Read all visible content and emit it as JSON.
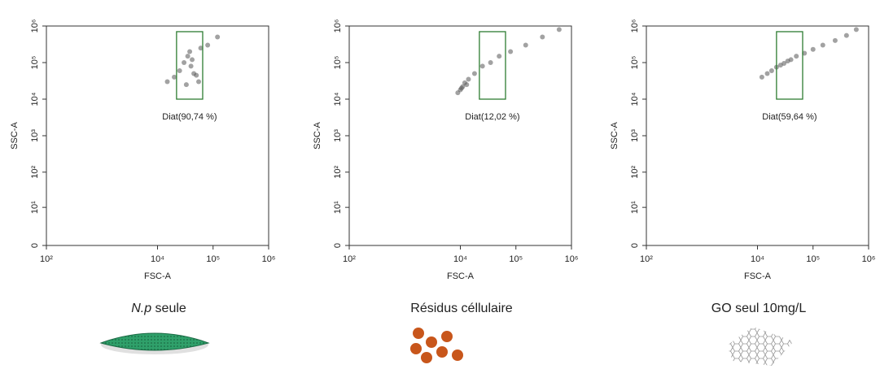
{
  "chart_data": [
    {
      "type": "scatter",
      "xlabel": "FSC-A",
      "ylabel": "SSC-A",
      "xscale": "log",
      "yscale": "symlog",
      "xlim": [
        100,
        1000000
      ],
      "ylim": [
        0,
        1000000
      ],
      "xticks": [
        {
          "value": 100,
          "label": "10²"
        },
        {
          "value": 10000,
          "label": "10⁴"
        },
        {
          "value": 100000,
          "label": "10⁵"
        },
        {
          "value": 1000000,
          "label": "10⁶"
        }
      ],
      "yticks": [
        0,
        {
          "value": 10,
          "label": "10¹"
        },
        {
          "value": 100,
          "label": "10²"
        },
        {
          "value": 1000,
          "label": "10³"
        },
        {
          "value": 10000,
          "label": "10⁴"
        },
        {
          "value": 100000,
          "label": "10⁵"
        },
        {
          "value": 1000000,
          "label": "10⁶"
        }
      ],
      "color": "#555555",
      "x": [
        25000,
        30000,
        35000,
        40000,
        45000,
        50000,
        38000,
        42000,
        60000,
        20000,
        15000,
        80000,
        120000,
        55000,
        33000
      ],
      "y": [
        60000,
        100000,
        150000,
        80000,
        50000,
        45000,
        200000,
        120000,
        250000,
        40000,
        30000,
        300000,
        500000,
        30000,
        25000
      ],
      "gate": {
        "x": [
          22000,
          65000
        ],
        "y": [
          10000,
          700000
        ],
        "label": "Diat(90,74 %)",
        "color": "#2e7d32"
      },
      "caption_emphasis": "N.p",
      "caption": " seule"
    },
    {
      "type": "scatter",
      "xlabel": "FSC-A",
      "ylabel": "SSC-A",
      "xscale": "log",
      "yscale": "symlog",
      "xlim": [
        100,
        1000000
      ],
      "ylim": [
        0,
        1000000
      ],
      "xticks": [
        {
          "value": 100,
          "label": "10²"
        },
        {
          "value": 10000,
          "label": "10⁴"
        },
        {
          "value": 100000,
          "label": "10⁵"
        },
        {
          "value": 1000000,
          "label": "10⁶"
        }
      ],
      "yticks": [
        0,
        {
          "value": 10,
          "label": "10¹"
        },
        {
          "value": 100,
          "label": "10²"
        },
        {
          "value": 1000,
          "label": "10³"
        },
        {
          "value": 10000,
          "label": "10⁴"
        },
        {
          "value": 100000,
          "label": "10⁵"
        },
        {
          "value": 1000000,
          "label": "10⁶"
        }
      ],
      "color": "#555555",
      "x": [
        9000,
        10000,
        11000,
        12000,
        10500,
        14000,
        18000,
        25000,
        35000,
        50000,
        80000,
        150000,
        300000,
        600000,
        13000
      ],
      "y": [
        15000,
        18000,
        22000,
        28000,
        20000,
        35000,
        50000,
        80000,
        100000,
        150000,
        200000,
        300000,
        500000,
        800000,
        25000
      ],
      "gate": {
        "x": [
          22000,
          65000
        ],
        "y": [
          10000,
          700000
        ],
        "label": "Diat(12,02 %)",
        "color": "#2e7d32"
      },
      "caption": "Résidus céllulaire"
    },
    {
      "type": "scatter",
      "xlabel": "FSC-A",
      "ylabel": "SSC-A",
      "xscale": "log",
      "yscale": "symlog",
      "xlim": [
        100,
        1000000
      ],
      "ylim": [
        0,
        1000000
      ],
      "xticks": [
        {
          "value": 100,
          "label": "10²"
        },
        {
          "value": 10000,
          "label": "10⁴"
        },
        {
          "value": 100000,
          "label": "10⁵"
        },
        {
          "value": 1000000,
          "label": "10⁶"
        }
      ],
      "yticks": [
        0,
        {
          "value": 10,
          "label": "10¹"
        },
        {
          "value": 100,
          "label": "10²"
        },
        {
          "value": 1000,
          "label": "10³"
        },
        {
          "value": 10000,
          "label": "10⁴"
        },
        {
          "value": 100000,
          "label": "10⁵"
        },
        {
          "value": 1000000,
          "label": "10⁶"
        }
      ],
      "color": "#555555",
      "x": [
        12000,
        15000,
        18000,
        22000,
        26000,
        30000,
        40000,
        50000,
        70000,
        100000,
        150000,
        250000,
        400000,
        600000,
        35000
      ],
      "y": [
        40000,
        50000,
        60000,
        75000,
        85000,
        95000,
        120000,
        150000,
        180000,
        230000,
        300000,
        400000,
        550000,
        800000,
        110000
      ],
      "gate": {
        "x": [
          22000,
          65000
        ],
        "y": [
          10000,
          700000
        ],
        "label": "Diat(59,64 %)",
        "color": "#2e7d32"
      },
      "caption": "GO seul 10mg/L"
    }
  ]
}
